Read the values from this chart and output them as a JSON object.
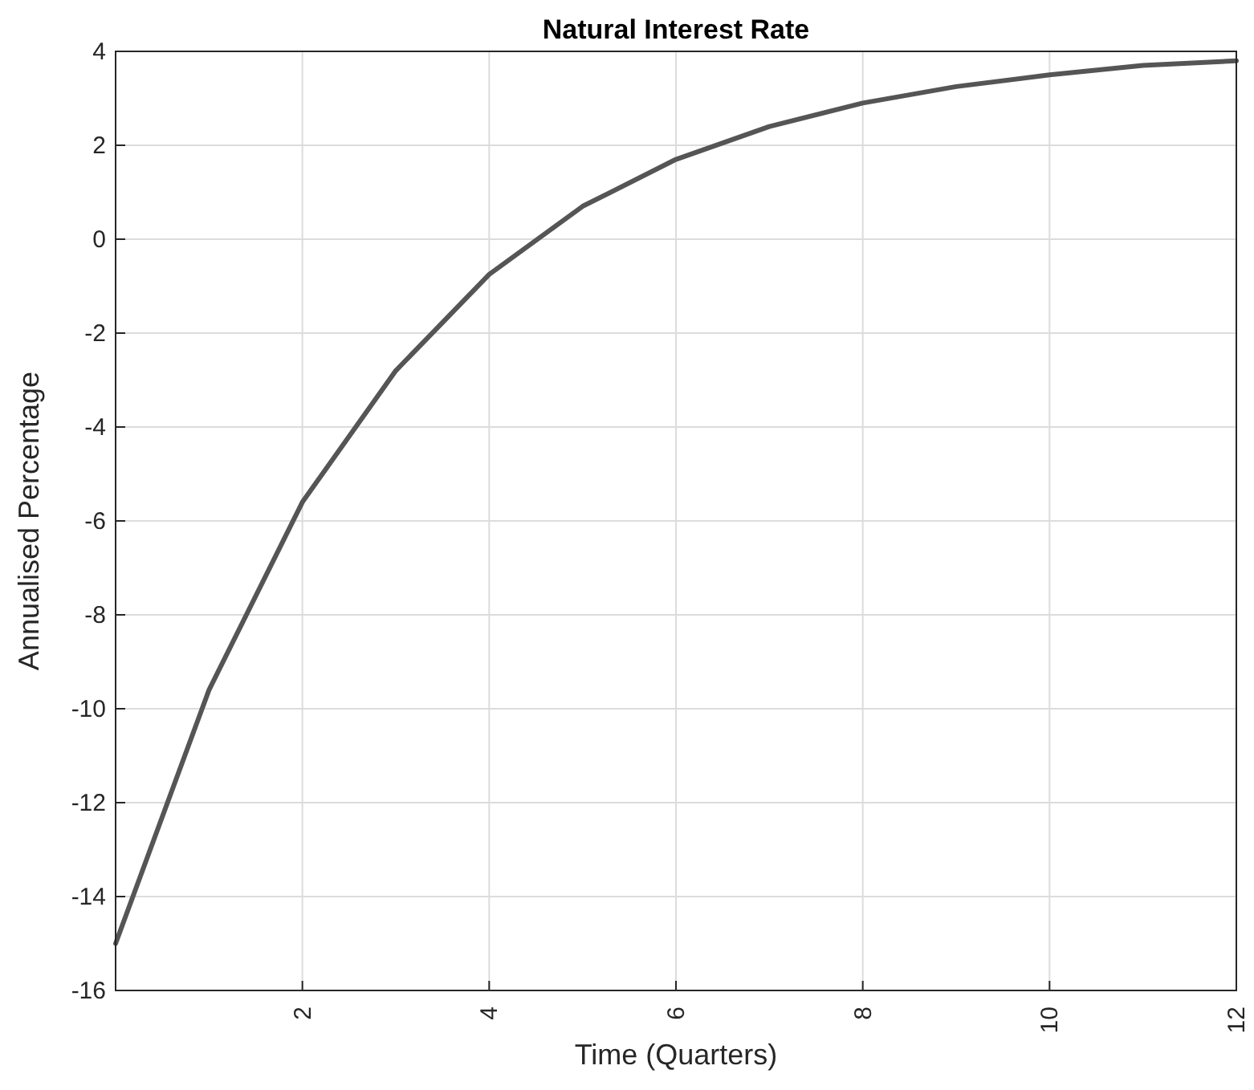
{
  "chart_data": {
    "type": "line",
    "title": "Natural Interest Rate",
    "xlabel": "Time (Quarters)",
    "ylabel": "Annualised Percentage",
    "x": [
      0,
      1,
      2,
      3,
      4,
      5,
      6,
      7,
      8,
      9,
      10,
      11,
      12
    ],
    "series": [
      {
        "color": "#555555",
        "values": [
          -15,
          -9.6,
          -5.6,
          -2.8,
          -0.75,
          0.7,
          1.7,
          2.4,
          2.9,
          3.25,
          3.5,
          3.7,
          3.8
        ]
      }
    ],
    "xlim": [
      0,
      12
    ],
    "xticks": [
      2,
      4,
      6,
      8,
      10,
      12
    ],
    "ylim": [
      -16,
      4
    ],
    "yticks": [
      -16,
      -14,
      -12,
      -10,
      -8,
      -6,
      -4,
      -2,
      0,
      2,
      4
    ],
    "grid": true,
    "marker": "none",
    "line_style": "solid"
  }
}
